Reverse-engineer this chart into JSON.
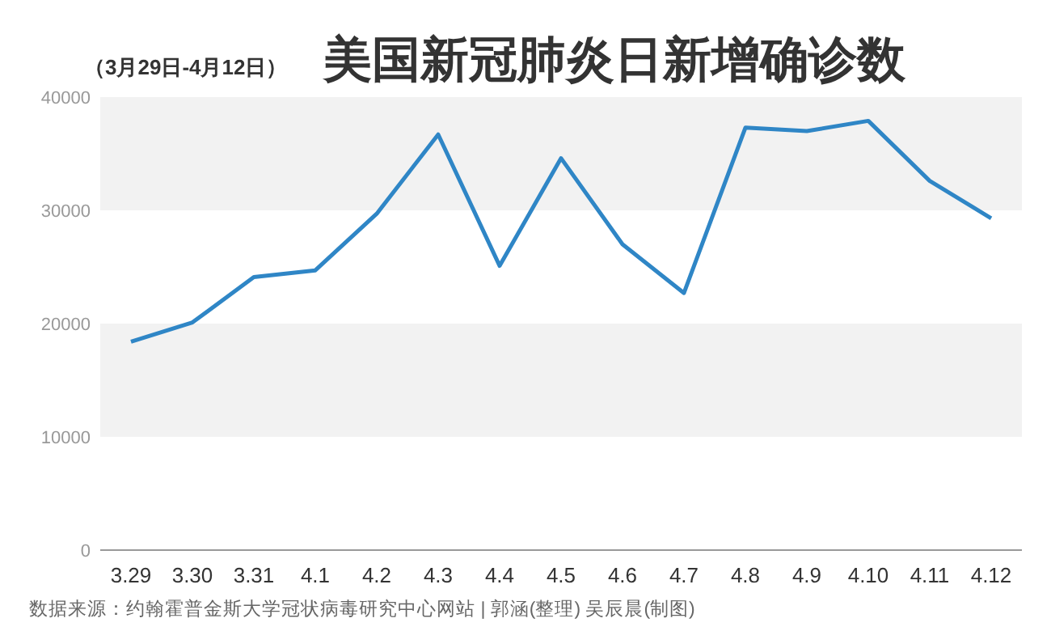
{
  "chart_data": {
    "type": "line",
    "title": "美国新冠肺炎日新增确诊数",
    "subtitle": "（3月29日-4月12日）",
    "categories": [
      "3.29",
      "3.30",
      "3.31",
      "4.1",
      "4.2",
      "4.3",
      "4.4",
      "4.5",
      "4.6",
      "4.7",
      "4.8",
      "4.9",
      "4.10",
      "4.11",
      "4.12"
    ],
    "series": [
      {
        "color": "#2f86c6",
        "values": [
          18400,
          20100,
          24100,
          24700,
          29700,
          36700,
          25100,
          34600,
          27000,
          22700,
          37300,
          37000,
          37900,
          32600,
          29300
        ]
      }
    ],
    "ylim": [
      0,
      40000
    ],
    "yticks": [
      0,
      10000,
      20000,
      30000,
      40000
    ],
    "bands": [
      {
        "axis": "y",
        "from": 30000,
        "to": 40000,
        "color": "#f2f2f2"
      },
      {
        "axis": "y",
        "from": 10000,
        "to": 20000,
        "color": "#f2f2f2"
      }
    ],
    "grid": false,
    "marker": "none",
    "line_style": "solid",
    "annotations": [
      "数据来源：约翰霍普金斯大学冠状病毒研究中心网站  |  郭涵(整理)  吴辰晨(制图)"
    ]
  }
}
